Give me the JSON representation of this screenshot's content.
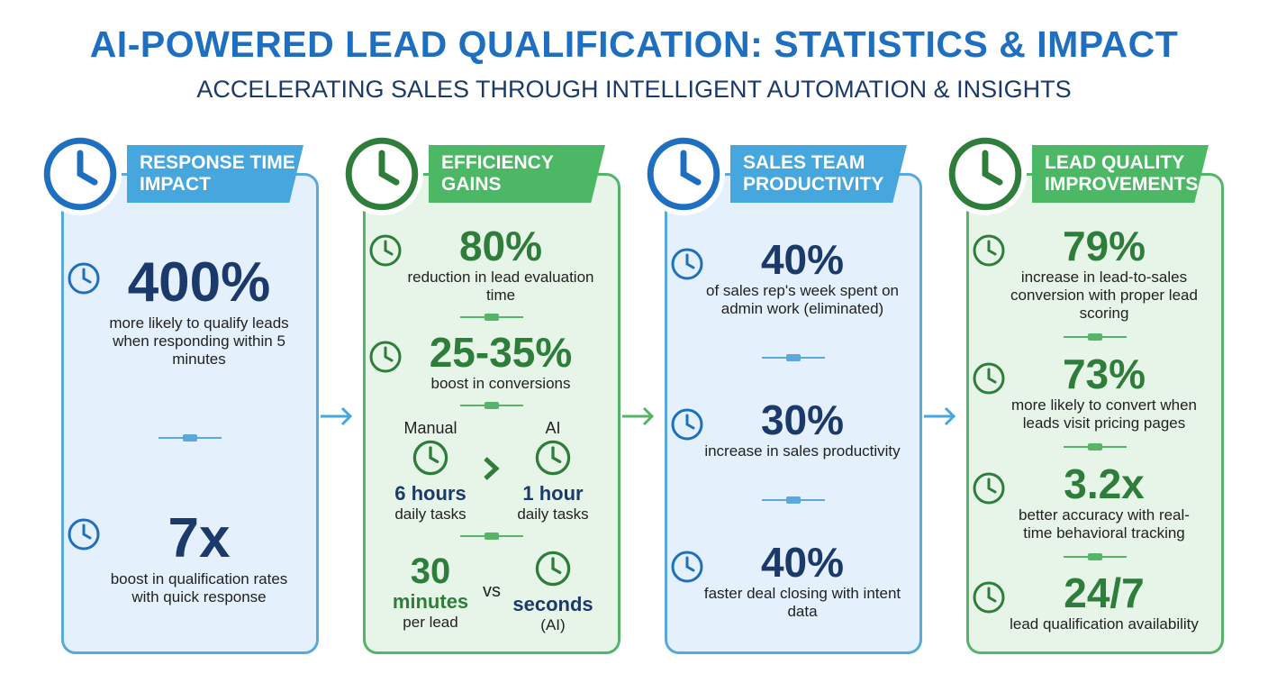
{
  "header": {
    "title": "AI-POWERED LEAD QUALIFICATION: STATISTICS & IMPACT",
    "subtitle": "ACCELERATING SALES THROUGH INTELLIGENT AUTOMATION & INSIGHTS"
  },
  "panels": [
    {
      "title": "RESPONSE TIME IMPACT",
      "theme": "blue",
      "stats": [
        {
          "value": "400%",
          "label": "more likely to qualify leads when responding within 5 minutes"
        },
        {
          "value": "7x",
          "label": "boost in qualification rates with quick response"
        }
      ]
    },
    {
      "title": "EFFICIENCY GAINS",
      "theme": "green",
      "stats": [
        {
          "value": "80%",
          "label": "reduction in lead evaluation time"
        },
        {
          "value": "25-35%",
          "label": "boost in conversions"
        }
      ],
      "comparisons": [
        {
          "left": {
            "heading": "Manual",
            "value": "6 hours",
            "label": "daily tasks"
          },
          "right": {
            "heading": "AI",
            "value": "1 hour",
            "label": "daily tasks"
          }
        },
        {
          "left": {
            "value": "30",
            "unit": "minutes",
            "label": "per lead"
          },
          "separator": "vs",
          "right": {
            "value": "seconds",
            "label": "(AI)"
          }
        }
      ]
    },
    {
      "title": "SALES TEAM PRODUCTIVITY",
      "theme": "blue",
      "stats": [
        {
          "value": "40%",
          "label": "of sales rep's week spent on admin work (eliminated)"
        },
        {
          "value": "30%",
          "label": "increase in sales productivity"
        },
        {
          "value": "40%",
          "label": "faster deal closing with intent data"
        }
      ]
    },
    {
      "title": "LEAD QUALITY IMPROVEMENTS",
      "theme": "green",
      "stats": [
        {
          "value": "79%",
          "label": "increase in lead-to-sales conversion with proper lead scoring"
        },
        {
          "value": "73%",
          "label": "more likely to convert when leads visit pricing pages"
        },
        {
          "value": "3.2x",
          "label": "better accuracy with real-time behavioral tracking"
        },
        {
          "value": "24/7",
          "label": "lead qualification availability"
        }
      ]
    }
  ]
}
